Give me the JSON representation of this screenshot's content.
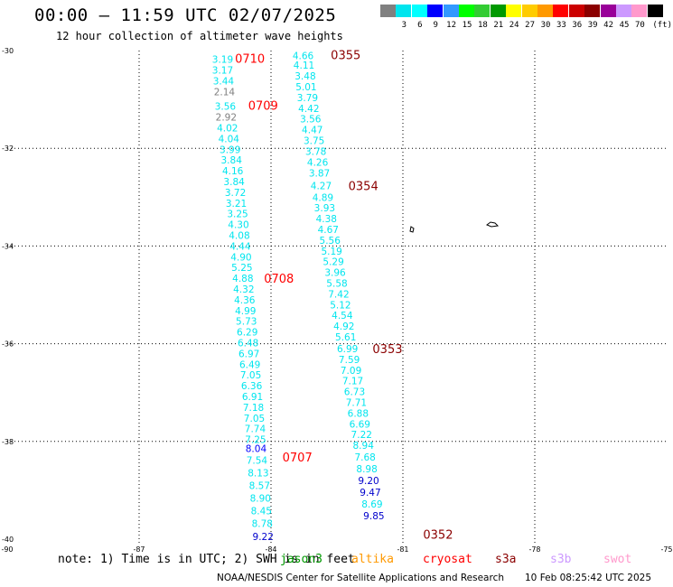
{
  "header": {
    "title": "00:00 – 11:59 UTC 02/07/2025",
    "subtitle": "12 hour collection of altimeter wave heights"
  },
  "color_scale": {
    "bins": [
      {
        "label": "",
        "color": "#808080"
      },
      {
        "label": "3",
        "color": "#00e5ee"
      },
      {
        "label": "6",
        "color": "#00ffff"
      },
      {
        "label": "9",
        "color": "#0000ff"
      },
      {
        "label": "12",
        "color": "#3399ff"
      },
      {
        "label": "15",
        "color": "#00ff00"
      },
      {
        "label": "18",
        "color": "#33cc33"
      },
      {
        "label": "21",
        "color": "#009900"
      },
      {
        "label": "24",
        "color": "#ffff00"
      },
      {
        "label": "27",
        "color": "#ffcc00"
      },
      {
        "label": "30",
        "color": "#ff9900"
      },
      {
        "label": "33",
        "color": "#ff0000"
      },
      {
        "label": "36",
        "color": "#cc0000"
      },
      {
        "label": "39",
        "color": "#8b0000"
      },
      {
        "label": "42",
        "color": "#990099"
      },
      {
        "label": "45",
        "color": "#cc99ff"
      },
      {
        "label": "70",
        "color": "#ff99cc"
      },
      {
        "label": "",
        "color": "#000000"
      }
    ],
    "unit": "(ft)"
  },
  "chart_data": {
    "type": "scatter",
    "title": "00:00 – 11:59 UTC 02/07/2025",
    "subtitle": "12 hour collection of altimeter wave heights",
    "xlim": [
      -90,
      -75
    ],
    "ylim": [
      -40,
      -30
    ],
    "x_ticks": [
      -90,
      -87,
      -84,
      -81,
      -78,
      -75
    ],
    "y_ticks": [
      -30,
      -32,
      -34,
      -36,
      -38,
      -40
    ],
    "grid": true,
    "track_a": [
      {
        "lon": -85.1,
        "lat": -30.18,
        "swh": "3.19",
        "color": "#00e5ee"
      },
      {
        "lon": -85.1,
        "lat": -30.4,
        "swh": "3.17",
        "color": "#00e5ee"
      },
      {
        "lon": -85.08,
        "lat": -30.62,
        "swh": "3.44",
        "color": "#00e5ee"
      },
      {
        "lon": -85.06,
        "lat": -30.84,
        "swh": "2.14",
        "color": "#808080"
      },
      {
        "lon": -85.04,
        "lat": -31.14,
        "swh": "3.56",
        "color": "#00e5ee"
      },
      {
        "lon": -85.02,
        "lat": -31.36,
        "swh": "2.92",
        "color": "#808080"
      },
      {
        "lon": -84.99,
        "lat": -31.58,
        "swh": "4.02",
        "color": "#00e5ee"
      },
      {
        "lon": -84.96,
        "lat": -31.8,
        "swh": "4.04",
        "color": "#00e5ee"
      },
      {
        "lon": -84.93,
        "lat": -32.02,
        "swh": "3.99",
        "color": "#00e5ee"
      },
      {
        "lon": -84.9,
        "lat": -32.24,
        "swh": "3.84",
        "color": "#00e5ee"
      },
      {
        "lon": -84.87,
        "lat": -32.46,
        "swh": "4.16",
        "color": "#00e5ee"
      },
      {
        "lon": -84.84,
        "lat": -32.68,
        "swh": "3.84",
        "color": "#00e5ee"
      },
      {
        "lon": -84.81,
        "lat": -32.9,
        "swh": "3.72",
        "color": "#00e5ee"
      },
      {
        "lon": -84.79,
        "lat": -33.12,
        "swh": "3.21",
        "color": "#00e5ee"
      },
      {
        "lon": -84.76,
        "lat": -33.34,
        "swh": "3.25",
        "color": "#00e5ee"
      },
      {
        "lon": -84.74,
        "lat": -33.56,
        "swh": "4.30",
        "color": "#00e5ee"
      },
      {
        "lon": -84.72,
        "lat": -33.78,
        "swh": "4.08",
        "color": "#00e5ee"
      },
      {
        "lon": -84.7,
        "lat": -34.0,
        "swh": "4.44",
        "color": "#00e5ee"
      },
      {
        "lon": -84.68,
        "lat": -34.22,
        "swh": "4.90",
        "color": "#00e5ee"
      },
      {
        "lon": -84.66,
        "lat": -34.44,
        "swh": "5.25",
        "color": "#00e5ee"
      },
      {
        "lon": -84.64,
        "lat": -34.66,
        "swh": "4.88",
        "color": "#00e5ee"
      },
      {
        "lon": -84.62,
        "lat": -34.88,
        "swh": "4.32",
        "color": "#00e5ee"
      },
      {
        "lon": -84.6,
        "lat": -35.1,
        "swh": "4.36",
        "color": "#00e5ee"
      },
      {
        "lon": -84.58,
        "lat": -35.32,
        "swh": "4.99",
        "color": "#00e5ee"
      },
      {
        "lon": -84.56,
        "lat": -35.54,
        "swh": "5.73",
        "color": "#00e5ee"
      },
      {
        "lon": -84.54,
        "lat": -35.76,
        "swh": "6.29",
        "color": "#00e5ee"
      },
      {
        "lon": -84.52,
        "lat": -35.98,
        "swh": "6.48",
        "color": "#00e5ee"
      },
      {
        "lon": -84.5,
        "lat": -36.2,
        "swh": "6.97",
        "color": "#00e5ee"
      },
      {
        "lon": -84.48,
        "lat": -36.42,
        "swh": "6.49",
        "color": "#00e5ee"
      },
      {
        "lon": -84.46,
        "lat": -36.64,
        "swh": "7.05",
        "color": "#00e5ee"
      },
      {
        "lon": -84.44,
        "lat": -36.86,
        "swh": "6.36",
        "color": "#00e5ee"
      },
      {
        "lon": -84.42,
        "lat": -37.08,
        "swh": "6.91",
        "color": "#00e5ee"
      },
      {
        "lon": -84.4,
        "lat": -37.3,
        "swh": "7.18",
        "color": "#00e5ee"
      },
      {
        "lon": -84.38,
        "lat": -37.52,
        "swh": "7.05",
        "color": "#00e5ee"
      },
      {
        "lon": -84.36,
        "lat": -37.74,
        "swh": "7.74",
        "color": "#00e5ee"
      },
      {
        "lon": -84.35,
        "lat": -37.96,
        "swh": "7.25",
        "color": "#00e5ee"
      },
      {
        "lon": -84.34,
        "lat": -38.14,
        "swh": "8.04",
        "color": "#0000ff"
      },
      {
        "lon": -84.32,
        "lat": -38.38,
        "swh": "7.54",
        "color": "#00e5ee"
      },
      {
        "lon": -84.29,
        "lat": -38.64,
        "swh": "8.13",
        "color": "#00e5ee"
      },
      {
        "lon": -84.26,
        "lat": -38.9,
        "swh": "8.57",
        "color": "#00e5ee"
      },
      {
        "lon": -84.24,
        "lat": -39.16,
        "swh": "8.90",
        "color": "#00e5ee"
      },
      {
        "lon": -84.22,
        "lat": -39.42,
        "swh": "8.45",
        "color": "#00e5ee"
      },
      {
        "lon": -84.2,
        "lat": -39.68,
        "swh": "8.78",
        "color": "#00e5ee"
      },
      {
        "lon": -84.18,
        "lat": -39.94,
        "swh": "9.22",
        "color": "#0000cc"
      }
    ],
    "track_b": [
      {
        "lon": -83.27,
        "lat": -30.1,
        "swh": "4.66",
        "color": "#00e5ee"
      },
      {
        "lon": -83.25,
        "lat": -30.3,
        "swh": "4.11",
        "color": "#00e5ee"
      },
      {
        "lon": -83.22,
        "lat": -30.52,
        "swh": "3.48",
        "color": "#00e5ee"
      },
      {
        "lon": -83.2,
        "lat": -30.74,
        "swh": "5.01",
        "color": "#00e5ee"
      },
      {
        "lon": -83.17,
        "lat": -30.96,
        "swh": "3.79",
        "color": "#00e5ee"
      },
      {
        "lon": -83.14,
        "lat": -31.18,
        "swh": "4.42",
        "color": "#00e5ee"
      },
      {
        "lon": -83.1,
        "lat": -31.4,
        "swh": "3.56",
        "color": "#00e5ee"
      },
      {
        "lon": -83.06,
        "lat": -31.62,
        "swh": "4.47",
        "color": "#00e5ee"
      },
      {
        "lon": -83.02,
        "lat": -31.84,
        "swh": "3.75",
        "color": "#00e5ee"
      },
      {
        "lon": -82.98,
        "lat": -32.06,
        "swh": "3.78",
        "color": "#00e5ee"
      },
      {
        "lon": -82.94,
        "lat": -32.28,
        "swh": "4.26",
        "color": "#00e5ee"
      },
      {
        "lon": -82.9,
        "lat": -32.5,
        "swh": "3.87",
        "color": "#00e5ee"
      },
      {
        "lon": -82.86,
        "lat": -32.76,
        "swh": "4.27",
        "color": "#00e5ee"
      },
      {
        "lon": -82.82,
        "lat": -33.0,
        "swh": "4.89",
        "color": "#00e5ee"
      },
      {
        "lon": -82.78,
        "lat": -33.22,
        "swh": "3.93",
        "color": "#00e5ee"
      },
      {
        "lon": -82.74,
        "lat": -33.44,
        "swh": "4.38",
        "color": "#00e5ee"
      },
      {
        "lon": -82.7,
        "lat": -33.66,
        "swh": "4.67",
        "color": "#00e5ee"
      },
      {
        "lon": -82.66,
        "lat": -33.88,
        "swh": "5.56",
        "color": "#00e5ee"
      },
      {
        "lon": -82.62,
        "lat": -34.1,
        "swh": "5.19",
        "color": "#00e5ee"
      },
      {
        "lon": -82.58,
        "lat": -34.32,
        "swh": "5.29",
        "color": "#00e5ee"
      },
      {
        "lon": -82.54,
        "lat": -34.54,
        "swh": "3.96",
        "color": "#00e5ee"
      },
      {
        "lon": -82.5,
        "lat": -34.76,
        "swh": "5.58",
        "color": "#00e5ee"
      },
      {
        "lon": -82.46,
        "lat": -34.98,
        "swh": "7.42",
        "color": "#00e5ee"
      },
      {
        "lon": -82.42,
        "lat": -35.2,
        "swh": "5.12",
        "color": "#00e5ee"
      },
      {
        "lon": -82.38,
        "lat": -35.42,
        "swh": "4.54",
        "color": "#00e5ee"
      },
      {
        "lon": -82.34,
        "lat": -35.64,
        "swh": "4.92",
        "color": "#00e5ee"
      },
      {
        "lon": -82.3,
        "lat": -35.86,
        "swh": "5.61",
        "color": "#00e5ee"
      },
      {
        "lon": -82.26,
        "lat": -36.1,
        "swh": "6.99",
        "color": "#00e5ee"
      },
      {
        "lon": -82.22,
        "lat": -36.32,
        "swh": "7.59",
        "color": "#00e5ee"
      },
      {
        "lon": -82.18,
        "lat": -36.54,
        "swh": "7.09",
        "color": "#00e5ee"
      },
      {
        "lon": -82.14,
        "lat": -36.76,
        "swh": "7.17",
        "color": "#00e5ee"
      },
      {
        "lon": -82.1,
        "lat": -36.98,
        "swh": "6.73",
        "color": "#00e5ee"
      },
      {
        "lon": -82.06,
        "lat": -37.2,
        "swh": "7.71",
        "color": "#00e5ee"
      },
      {
        "lon": -82.02,
        "lat": -37.42,
        "swh": "6.88",
        "color": "#00e5ee"
      },
      {
        "lon": -81.98,
        "lat": -37.64,
        "swh": "6.69",
        "color": "#00e5ee"
      },
      {
        "lon": -81.94,
        "lat": -37.86,
        "swh": "7.22",
        "color": "#00e5ee"
      },
      {
        "lon": -81.9,
        "lat": -38.08,
        "swh": "8.94",
        "color": "#00e5ee"
      },
      {
        "lon": -81.86,
        "lat": -38.32,
        "swh": "7.68",
        "color": "#00e5ee"
      },
      {
        "lon": -81.82,
        "lat": -38.56,
        "swh": "8.98",
        "color": "#00e5ee"
      },
      {
        "lon": -81.78,
        "lat": -38.8,
        "swh": "9.20",
        "color": "#0000cc"
      },
      {
        "lon": -81.74,
        "lat": -39.04,
        "swh": "9.47",
        "color": "#0000cc"
      },
      {
        "lon": -81.7,
        "lat": -39.28,
        "swh": "8.69",
        "color": "#00e5ee"
      },
      {
        "lon": -81.66,
        "lat": -39.52,
        "swh": "9.85",
        "color": "#0000cc"
      }
    ],
    "time_labels": [
      {
        "text": "0710",
        "lon": -84.48,
        "lat": -30.16,
        "color": "#ff0000"
      },
      {
        "text": "0709",
        "lon": -84.18,
        "lat": -31.12,
        "color": "#ff0000"
      },
      {
        "text": "0708",
        "lon": -83.82,
        "lat": -34.66,
        "color": "#ff0000"
      },
      {
        "text": "0707",
        "lon": -83.4,
        "lat": -38.32,
        "color": "#ff0000"
      },
      {
        "text": "0355",
        "lon": -82.3,
        "lat": -30.08,
        "color": "#8b0000"
      },
      {
        "text": "0354",
        "lon": -81.9,
        "lat": -32.76,
        "color": "#8b0000"
      },
      {
        "text": "0353",
        "lon": -81.35,
        "lat": -36.1,
        "color": "#8b0000"
      },
      {
        "text": "0352",
        "lon": -80.2,
        "lat": -39.9,
        "color": "#8b0000"
      }
    ]
  },
  "footer": {
    "note": "note: 1) Time is in UTC; 2) SWH is in feet",
    "satellites": [
      {
        "name": "jason3",
        "color": "#009900"
      },
      {
        "name": "altika",
        "color": "#ff9900"
      },
      {
        "name": "cryosat",
        "color": "#ff0000"
      },
      {
        "name": "s3a",
        "color": "#8b0000"
      },
      {
        "name": "s3b",
        "color": "#cc99ff"
      },
      {
        "name": "swot",
        "color": "#ff99cc"
      }
    ],
    "credit": "NOAA/NESDIS Center for Satellite Applications and Research",
    "timestamp": "10 Feb 08:25:42 UTC 2025"
  }
}
